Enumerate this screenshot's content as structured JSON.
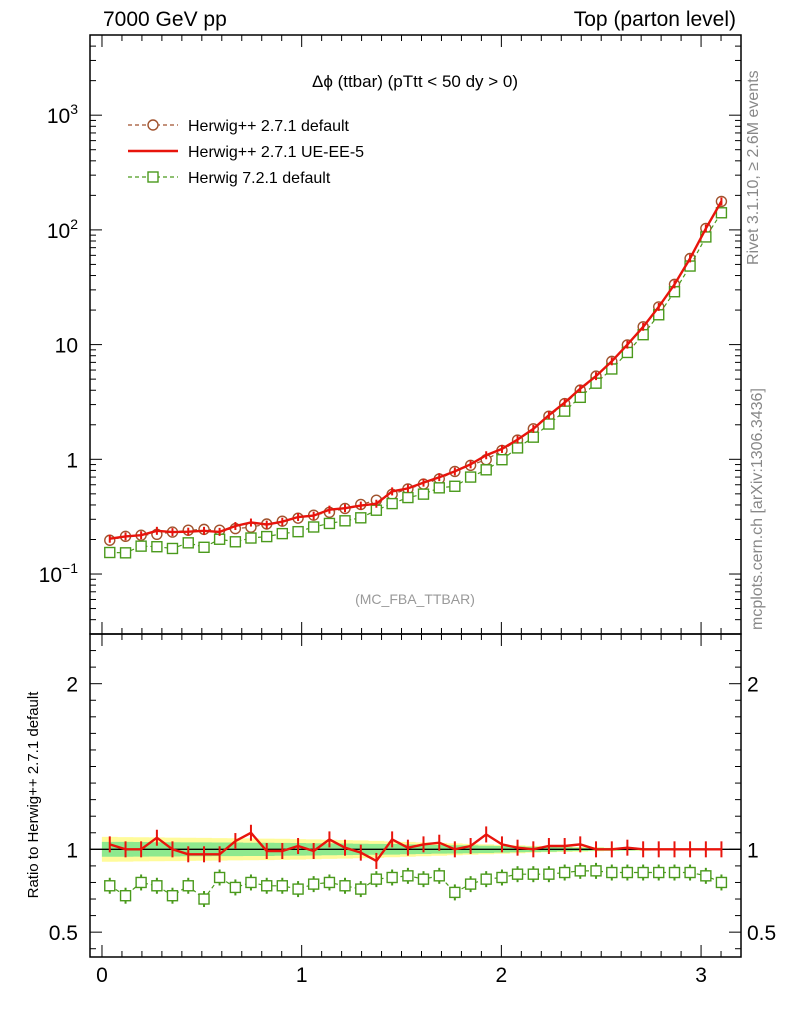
{
  "header": {
    "left": "7000 GeV pp",
    "right": "Top (parton level)"
  },
  "side_labels": {
    "rivet": "Rivet 3.1.10, ≥ 2.6M events",
    "mcplots": "mcplots.cern.ch [arXiv:1306.3436]"
  },
  "chart_data": [
    {
      "type": "line",
      "title": "Δϕ (ttbar) (pTtt < 50 dy > 0)",
      "watermark": "(MC_FBA_TTBAR)",
      "yscale": "log",
      "ylim": [
        0.03,
        5000
      ],
      "xlim": [
        -0.06,
        3.2
      ],
      "xticks": [
        0,
        1,
        2,
        3
      ],
      "yticks": [
        {
          "value": 0.1,
          "label_base": "10",
          "label_exp": "−1"
        },
        {
          "value": 1,
          "label_base": "1",
          "label_exp": ""
        },
        {
          "value": 10,
          "label_base": "10",
          "label_exp": ""
        },
        {
          "value": 100,
          "label_base": "10",
          "label_exp": "2"
        },
        {
          "value": 1000,
          "label_base": "10",
          "label_exp": "3"
        }
      ],
      "legend_position": "top-left",
      "x": [
        0.039,
        0.118,
        0.196,
        0.275,
        0.353,
        0.432,
        0.511,
        0.589,
        0.668,
        0.746,
        0.825,
        0.903,
        0.982,
        1.06,
        1.139,
        1.217,
        1.296,
        1.374,
        1.453,
        1.532,
        1.61,
        1.689,
        1.767,
        1.846,
        1.924,
        2.003,
        2.081,
        2.16,
        2.238,
        2.317,
        2.395,
        2.474,
        2.553,
        2.631,
        2.71,
        2.788,
        2.867,
        2.945,
        3.024,
        3.102
      ],
      "series": [
        {
          "name": "Herwig++ 2.7.1 default",
          "color": "#a0522d",
          "marker": "open-circle",
          "line": "dashed",
          "values": [
            0.197,
            0.213,
            0.218,
            0.222,
            0.232,
            0.241,
            0.245,
            0.241,
            0.249,
            0.256,
            0.273,
            0.289,
            0.307,
            0.326,
            0.345,
            0.373,
            0.404,
            0.44,
            0.495,
            0.552,
            0.608,
            0.675,
            0.784,
            0.887,
            0.993,
            1.196,
            1.471,
            1.844,
            2.375,
            3.06,
            4.01,
            5.31,
            7.14,
            9.94,
            14.3,
            21.3,
            33.5,
            56.3,
            103.0,
            177.0
          ]
        },
        {
          "name": "Herwig++ 2.7.1 UE-EE-5",
          "color": "#e8140c",
          "marker": "error-bar",
          "line": "solid",
          "values": [
            0.203,
            0.213,
            0.218,
            0.238,
            0.232,
            0.234,
            0.238,
            0.233,
            0.262,
            0.281,
            0.27,
            0.286,
            0.314,
            0.323,
            0.364,
            0.375,
            0.395,
            0.41,
            0.525,
            0.558,
            0.626,
            0.699,
            0.784,
            0.904,
            1.085,
            1.232,
            1.486,
            1.843,
            2.423,
            3.12,
            4.13,
            5.31,
            7.15,
            10.0,
            14.3,
            21.3,
            33.5,
            56.4,
            103.0,
            177.0
          ]
        },
        {
          "name": "Herwig 7.2.1 default",
          "color": "#4a9a1c",
          "marker": "open-square",
          "line": "dashed",
          "values": [
            0.154,
            0.153,
            0.175,
            0.173,
            0.167,
            0.187,
            0.171,
            0.201,
            0.191,
            0.206,
            0.212,
            0.225,
            0.234,
            0.257,
            0.276,
            0.291,
            0.309,
            0.36,
            0.411,
            0.464,
            0.497,
            0.564,
            0.582,
            0.7,
            0.81,
            0.992,
            1.257,
            1.56,
            2.03,
            2.63,
            3.47,
            4.61,
            6.13,
            8.54,
            12.2,
            18.2,
            28.9,
            48.4,
            86.8,
            141.0
          ]
        }
      ]
    },
    {
      "type": "line",
      "ylabel": "Ratio to Herwig++ 2.7.1 default",
      "ylim": [
        0.35,
        2.3
      ],
      "xlim": [
        -0.06,
        3.2
      ],
      "xticks": [
        0,
        1,
        2,
        3
      ],
      "yticks": [
        0.5,
        1,
        2
      ],
      "bands": {
        "green_half_width": [
          0.045,
          0.045,
          0.044,
          0.043,
          0.043,
          0.042,
          0.042,
          0.041,
          0.041,
          0.04,
          0.04,
          0.039,
          0.038,
          0.037,
          0.036,
          0.035,
          0.034,
          0.033,
          0.032,
          0.03,
          0.028,
          0.026,
          0.025,
          0.024,
          0.022,
          0.02,
          0.018,
          0.016,
          0.014,
          0.012,
          0.01,
          0.009,
          0.008,
          0.007,
          0.006,
          0.005,
          0.004,
          0.003,
          0.003,
          0.002
        ],
        "yellow_half_width": [
          0.075,
          0.074,
          0.073,
          0.072,
          0.071,
          0.07,
          0.069,
          0.068,
          0.067,
          0.066,
          0.065,
          0.064,
          0.062,
          0.06,
          0.058,
          0.056,
          0.054,
          0.051,
          0.048,
          0.045,
          0.042,
          0.039,
          0.036,
          0.033,
          0.03,
          0.027,
          0.024,
          0.021,
          0.018,
          0.016,
          0.014,
          0.012,
          0.01,
          0.009,
          0.008,
          0.007,
          0.006,
          0.005,
          0.004,
          0.003
        ]
      },
      "series": [
        {
          "name": "Herwig++ 2.7.1 UE-EE-5",
          "color": "#e8140c",
          "values": [
            1.03,
            1.0,
            1.0,
            1.07,
            1.0,
            0.97,
            0.97,
            0.97,
            1.05,
            1.1,
            0.99,
            0.99,
            1.02,
            0.99,
            1.06,
            1.01,
            0.98,
            0.93,
            1.06,
            1.01,
            1.03,
            1.04,
            1.0,
            1.02,
            1.09,
            1.03,
            1.01,
            1.0,
            1.02,
            1.02,
            1.03,
            1.0,
            1.0,
            1.01,
            1.0,
            1.0,
            1.0,
            1.0,
            1.0,
            1.0
          ]
        },
        {
          "name": "Herwig 7.2.1 default",
          "color": "#4a9a1c",
          "values": [
            0.78,
            0.72,
            0.8,
            0.78,
            0.72,
            0.78,
            0.7,
            0.83,
            0.77,
            0.8,
            0.78,
            0.78,
            0.76,
            0.79,
            0.8,
            0.78,
            0.76,
            0.82,
            0.83,
            0.84,
            0.82,
            0.84,
            0.74,
            0.79,
            0.82,
            0.83,
            0.85,
            0.85,
            0.85,
            0.86,
            0.87,
            0.87,
            0.86,
            0.86,
            0.86,
            0.86,
            0.86,
            0.86,
            0.84,
            0.8
          ]
        }
      ]
    }
  ]
}
